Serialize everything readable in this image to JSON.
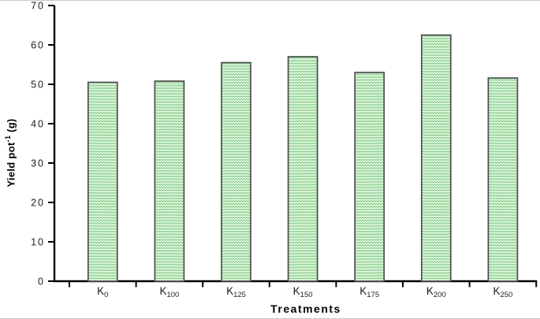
{
  "chart_data": {
    "type": "bar",
    "title": "",
    "xlabel": "Treatments",
    "ylabel": "Yield pot-1 (g)",
    "ylabel_parts": {
      "main": "Yield pot",
      "sup": "-1",
      "unit": " (g)"
    },
    "categories": [
      {
        "base": "K",
        "sub": "0"
      },
      {
        "base": "K",
        "sub": "100"
      },
      {
        "base": "K",
        "sub": "125"
      },
      {
        "base": "K",
        "sub": "150"
      },
      {
        "base": "K",
        "sub": "175"
      },
      {
        "base": "K",
        "sub": "200"
      },
      {
        "base": "K",
        "sub": "250"
      }
    ],
    "values": [
      50.5,
      50.8,
      55.5,
      57.0,
      53.0,
      62.5,
      51.6
    ],
    "ylim": [
      0,
      70
    ],
    "yticks": [
      0,
      10,
      20,
      30,
      40,
      50,
      60,
      70
    ],
    "grid": false,
    "legend": null,
    "bar_style": {
      "fill": "#8ad28a",
      "hatch": "zigzag",
      "hatch_color": "#ffffff",
      "border": "#4d4d4d"
    },
    "colors": {
      "axis": "#000000",
      "text": "#1c1c1c",
      "background": "#ffffff"
    }
  }
}
